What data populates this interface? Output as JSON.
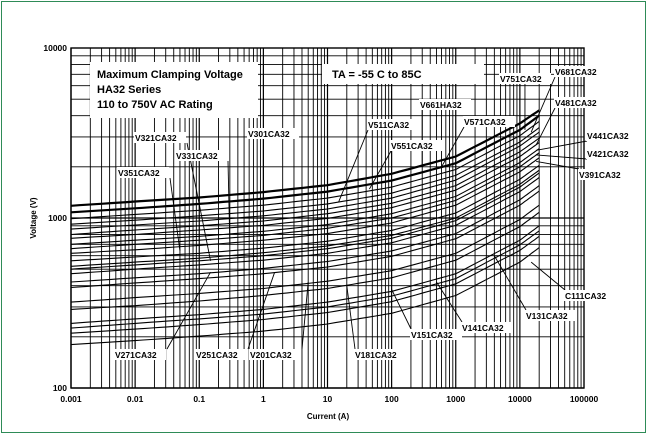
{
  "chart_data": {
    "type": "line",
    "title_lines": [
      "Maximum Clamping Voltage",
      "HA32  Series",
      "110 to 750V AC Rating"
    ],
    "condition": "TA = -55 C to 85C",
    "xlabel": "Current (A)",
    "ylabel": "Voltage (V)",
    "x_scale": "log",
    "y_scale": "log",
    "xlim": [
      0.001,
      100000
    ],
    "ylim": [
      100,
      10000
    ],
    "x_ticks": [
      0.001,
      0.01,
      0.1,
      1,
      10,
      100,
      1000,
      10000,
      100000
    ],
    "x_tick_labels": [
      "0.001",
      "0.01",
      "0.1",
      "1",
      "10",
      "100",
      "1000",
      "10000",
      "100000"
    ],
    "y_ticks": [
      100,
      1000,
      10000
    ],
    "y_tick_labels": [
      "100",
      "1000",
      "10000"
    ],
    "grid": true,
    "x": [
      0.001,
      0.01,
      0.1,
      1,
      10,
      100,
      1000,
      10000,
      20000
    ],
    "series": [
      {
        "name": "V751CA32",
        "values": [
          1180,
          1250,
          1320,
          1420,
          1560,
          1820,
          2300,
          3600,
          4300
        ],
        "bold": true
      },
      {
        "name": "V681CA32",
        "values": [
          1080,
          1140,
          1210,
          1300,
          1430,
          1660,
          2100,
          3300,
          4000
        ],
        "bold": true
      },
      {
        "name": "V661HA32",
        "values": [
          990,
          1050,
          1110,
          1190,
          1310,
          1520,
          1930,
          3050,
          3700
        ],
        "bold": false
      },
      {
        "name": "V571CA32",
        "values": [
          920,
          970,
          1030,
          1100,
          1210,
          1400,
          1780,
          2800,
          3400
        ],
        "bold": false
      },
      {
        "name": "V551CA32",
        "values": [
          860,
          910,
          960,
          1030,
          1130,
          1310,
          1670,
          2650,
          3200
        ],
        "bold": false
      },
      {
        "name": "V511CA32",
        "values": [
          800,
          850,
          900,
          960,
          1060,
          1220,
          1550,
          2450,
          2950
        ],
        "bold": false
      },
      {
        "name": "V481CA32",
        "values": [
          760,
          800,
          850,
          905,
          995,
          1150,
          1460,
          2300,
          2780
        ],
        "bold": false
      },
      {
        "name": "V441CA32",
        "values": [
          700,
          740,
          780,
          835,
          915,
          1060,
          1340,
          2120,
          2560
        ],
        "bold": false
      },
      {
        "name": "V421CA32",
        "values": [
          660,
          700,
          740,
          790,
          870,
          1000,
          1270,
          2000,
          2420
        ],
        "bold": false
      },
      {
        "name": "V391CA32",
        "values": [
          620,
          650,
          690,
          740,
          810,
          935,
          1190,
          1870,
          2260
        ],
        "bold": false
      },
      {
        "name": "V351CA32",
        "values": [
          560,
          590,
          620,
          665,
          730,
          845,
          1070,
          1690,
          2040
        ],
        "bold": false
      },
      {
        "name": "V331CA32",
        "values": [
          520,
          550,
          580,
          625,
          685,
          790,
          1000,
          1580,
          1910
        ],
        "bold": false
      },
      {
        "name": "V321CA32",
        "values": [
          500,
          530,
          560,
          600,
          660,
          760,
          965,
          1520,
          1840
        ],
        "bold": false
      },
      {
        "name": "V301CA32",
        "values": [
          470,
          500,
          530,
          565,
          620,
          715,
          905,
          1430,
          1730
        ],
        "bold": false
      },
      {
        "name": "V271CA32",
        "values": [
          420,
          445,
          470,
          505,
          555,
          640,
          810,
          1280,
          1550
        ],
        "bold": false
      },
      {
        "name": "V251CA32",
        "values": [
          390,
          415,
          440,
          470,
          515,
          595,
          755,
          1190,
          1440
        ],
        "bold": false
      },
      {
        "name": "V201CA32",
        "values": [
          320,
          340,
          360,
          385,
          425,
          490,
          620,
          980,
          1190
        ],
        "bold": false
      },
      {
        "name": "V181CA32",
        "values": [
          290,
          305,
          325,
          350,
          385,
          445,
          565,
          890,
          1080
        ],
        "bold": false
      },
      {
        "name": "V151CA32",
        "values": [
          240,
          255,
          270,
          290,
          320,
          370,
          470,
          740,
          900
        ],
        "bold": false
      },
      {
        "name": "V141CA32",
        "values": [
          225,
          240,
          255,
          272,
          300,
          347,
          440,
          695,
          840
        ],
        "bold": false
      },
      {
        "name": "V131CA32",
        "values": [
          210,
          222,
          236,
          253,
          278,
          322,
          410,
          645,
          780
        ],
        "bold": false
      },
      {
        "name": "C111CA32",
        "values": [
          180,
          190,
          202,
          216,
          238,
          275,
          350,
          550,
          670
        ],
        "bold": false
      }
    ],
    "callouts": [
      {
        "label": "V751CA32",
        "target": [
          12000,
          3300
        ]
      },
      {
        "label": "V681CA32",
        "target": [
          15000,
          3200
        ]
      },
      {
        "label": "V661HA32",
        "target": [
          300,
          2050
        ]
      },
      {
        "label": "V571CA32",
        "target": [
          600,
          2000
        ]
      },
      {
        "label": "V551CA32",
        "target": [
          45,
          1480
        ]
      },
      {
        "label": "V511CA32",
        "target": [
          15,
          1250
        ]
      },
      {
        "label": "V481CA32",
        "target": [
          18000,
          2700
        ]
      },
      {
        "label": "V441CA32",
        "target": [
          18000,
          2500
        ]
      },
      {
        "label": "V421CA32",
        "target": [
          18000,
          2350
        ]
      },
      {
        "label": "V391CA32",
        "target": [
          18000,
          2150
        ]
      },
      {
        "label": "V321CA32",
        "target": [
          0.15,
          560
        ]
      },
      {
        "label": "V331CA32",
        "target": [
          0.3,
          700
        ]
      },
      {
        "label": "V351CA32",
        "target": [
          0.05,
          640
        ]
      },
      {
        "label": "V301CA32",
        "target": [
          1,
          800
        ]
      },
      {
        "label": "V271CA32",
        "target": [
          0.15,
          480
        ]
      },
      {
        "label": "V251CA32",
        "target": [
          1.5,
          480
        ]
      },
      {
        "label": "V201CA32",
        "target": [
          5,
          420
        ]
      },
      {
        "label": "V181CA32",
        "target": [
          20,
          400
        ]
      },
      {
        "label": "V151CA32",
        "target": [
          100,
          380
        ]
      },
      {
        "label": "V141CA32",
        "target": [
          500,
          420
        ]
      },
      {
        "label": "V131CA32",
        "target": [
          4000,
          600
        ]
      },
      {
        "label": "C111CA32",
        "target": [
          15000,
          550
        ]
      }
    ]
  }
}
